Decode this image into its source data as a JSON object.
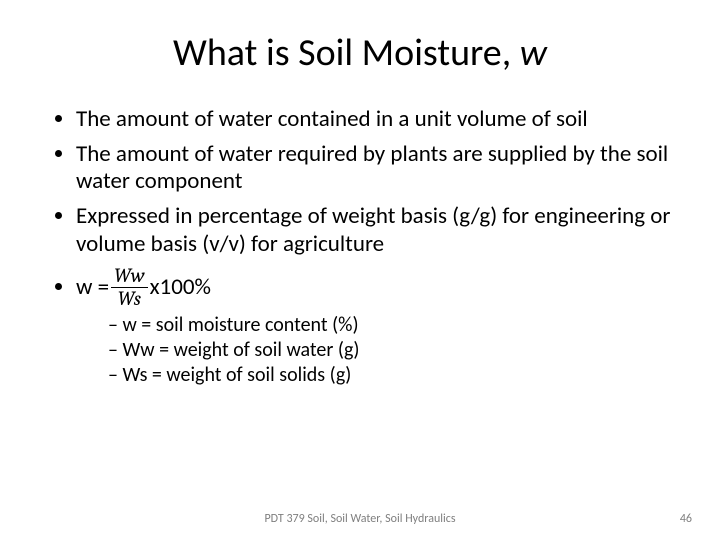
{
  "slide": {
    "title_prefix": "What is Soil Moisture, ",
    "title_italic": "w",
    "bullets": {
      "b1": "The amount of water contained in a unit volume of soil",
      "b2": "The amount of water required by plants are supplied by the soil water component",
      "b3": "Expressed in percentage of weight basis (g/g) for engineering or volume basis (v/v) for agriculture",
      "b4_lhs": "w = ",
      "b4_num": "Ww",
      "b4_den": "Ws",
      "b4_rhs": "x100%",
      "sub1": "w = soil moisture content (%)",
      "sub2": "Ww = weight of soil water (g)",
      "sub3": "Ws = weight of soil solids (g)"
    },
    "footer_center": "PDT 379 Soil, Soil Water, Soil Hydraulics",
    "page_number": "46"
  },
  "style": {
    "background_color": "#ffffff",
    "text_color": "#000000",
    "footer_color": "#7f7f7f",
    "title_fontsize_pt": 38,
    "body_fontsize_pt": 23,
    "sub_fontsize_pt": 20,
    "footer_fontsize_pt": 12,
    "font_family": "Calibri",
    "formula_font_family": "Cambria"
  }
}
